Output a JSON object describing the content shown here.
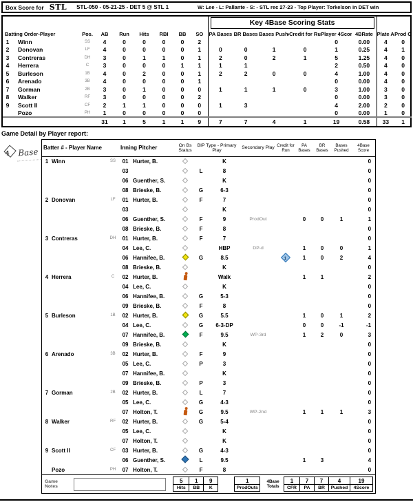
{
  "header": {
    "box_score_label": "Box Score for",
    "team_logo": "STL",
    "game_id": "STL-050 - 05-21-25 - DET 5 @ STL 1",
    "result_line": "W: Lee  -  L: Pallante  -  S:      -  STL rec 27-23 - Top Player: Torkelson in DET win"
  },
  "box_score": {
    "key_stats_title": "Key 4Base Scoring Stats",
    "columns": [
      "Batting Order-Player",
      "Pos.",
      "AB",
      "Run",
      "Hits",
      "RBI",
      "BB",
      "SO",
      "PA Bases",
      "BR Bases",
      "Bases Pushed",
      "Credit for Run",
      "Player 4Score",
      "4BRate",
      "Plate App",
      "Prod Outs"
    ],
    "rows": [
      {
        "order": "1",
        "name": "Winn",
        "pos": "SS",
        "ab": "4",
        "run": "0",
        "hits": "0",
        "rbi": "0",
        "bb": "0",
        "so": "2",
        "pa_bases": "",
        "br_bases": "",
        "pushed": "",
        "cfr": "",
        "four_score": "0",
        "rate": "0.00",
        "plate_app": "4",
        "prod_outs": "0"
      },
      {
        "order": "2",
        "name": "Donovan",
        "pos": "LF",
        "ab": "4",
        "run": "0",
        "hits": "0",
        "rbi": "0",
        "bb": "0",
        "so": "1",
        "pa_bases": "0",
        "br_bases": "0",
        "pushed": "1",
        "cfr": "0",
        "four_score": "1",
        "rate": "0.25",
        "plate_app": "4",
        "prod_outs": "1"
      },
      {
        "order": "3",
        "name": "Contreras",
        "pos": "DH",
        "ab": "3",
        "run": "0",
        "hits": "1",
        "rbi": "1",
        "bb": "0",
        "so": "1",
        "pa_bases": "2",
        "br_bases": "0",
        "pushed": "2",
        "cfr": "1",
        "four_score": "5",
        "rate": "1.25",
        "plate_app": "4",
        "prod_outs": "0"
      },
      {
        "order": "4",
        "name": "Herrera",
        "pos": "C",
        "ab": "3",
        "run": "0",
        "hits": "0",
        "rbi": "0",
        "bb": "1",
        "so": "1",
        "pa_bases": "1",
        "br_bases": "1",
        "pushed": "",
        "cfr": "",
        "four_score": "2",
        "rate": "0.50",
        "plate_app": "4",
        "prod_outs": "0"
      },
      {
        "order": "5",
        "name": "Burleson",
        "pos": "1B",
        "ab": "4",
        "run": "0",
        "hits": "2",
        "rbi": "0",
        "bb": "0",
        "so": "1",
        "pa_bases": "2",
        "br_bases": "2",
        "pushed": "0",
        "cfr": "0",
        "four_score": "4",
        "rate": "1.00",
        "plate_app": "4",
        "prod_outs": "0"
      },
      {
        "order": "6",
        "name": "Arenado",
        "pos": "3B",
        "ab": "4",
        "run": "0",
        "hits": "0",
        "rbi": "0",
        "bb": "0",
        "so": "1",
        "pa_bases": "",
        "br_bases": "",
        "pushed": "",
        "cfr": "",
        "four_score": "0",
        "rate": "0.00",
        "plate_app": "4",
        "prod_outs": "0"
      },
      {
        "order": "7",
        "name": "Gorman",
        "pos": "2B",
        "ab": "3",
        "run": "0",
        "hits": "1",
        "rbi": "0",
        "bb": "0",
        "so": "0",
        "pa_bases": "1",
        "br_bases": "1",
        "pushed": "1",
        "cfr": "0",
        "four_score": "3",
        "rate": "1.00",
        "plate_app": "3",
        "prod_outs": "0"
      },
      {
        "order": "8",
        "name": "Walker",
        "pos": "RF",
        "ab": "3",
        "run": "0",
        "hits": "0",
        "rbi": "0",
        "bb": "0",
        "so": "2",
        "pa_bases": "",
        "br_bases": "",
        "pushed": "",
        "cfr": "",
        "four_score": "0",
        "rate": "0.00",
        "plate_app": "3",
        "prod_outs": "0"
      },
      {
        "order": "9",
        "name": "Scott II",
        "pos": "CF",
        "ab": "2",
        "run": "1",
        "hits": "1",
        "rbi": "0",
        "bb": "0",
        "so": "0",
        "pa_bases": "1",
        "br_bases": "3",
        "pushed": "",
        "cfr": "",
        "four_score": "4",
        "rate": "2.00",
        "plate_app": "2",
        "prod_outs": "0"
      },
      {
        "order": "",
        "name": "Pozo",
        "pos": "PH",
        "ab": "1",
        "run": "0",
        "hits": "0",
        "rbi": "0",
        "bb": "0",
        "so": "0",
        "pa_bases": "",
        "br_bases": "",
        "pushed": "",
        "cfr": "",
        "four_score": "0",
        "rate": "0.00",
        "plate_app": "1",
        "prod_outs": "0"
      }
    ],
    "totals": [
      "",
      "",
      "",
      "31",
      "1",
      "5",
      "1",
      "1",
      "9",
      "7",
      "7",
      "4",
      "1",
      "19",
      "0.58",
      "33",
      "1"
    ]
  },
  "detail": {
    "section_title": "Game Detail by Player report:",
    "logo": {
      "number": "4",
      "text": "Base"
    },
    "columns": [
      "Batter # - Player Name",
      "Inning Pitcher",
      "On Bs Status",
      "BIP Type - Primary Play",
      "Secondary Play",
      "Credit for Run",
      "PA Bases",
      "BR Bases",
      "Bases Pushed",
      "4Base Score"
    ],
    "icons": {
      "default": "bases-empty-diamond-icon",
      "yellow": "runner-on-base-yellow-diamond-icon",
      "runner": "runner-advance-orange-icon",
      "green": "runner-scoring-green-diamond-icon",
      "blue": "runner-on-base-blue-diamond-icon",
      "cfr": "credit-for-run-diamond-icon"
    },
    "colors": {
      "yellow": "#f2e30e",
      "orange": "#c55a11",
      "green": "#00b050",
      "blue": "#2e75b6",
      "cfr_blue": "#9dc3e6"
    },
    "players": [
      {
        "order": "1",
        "name": "Winn",
        "pos": "SS",
        "pa": [
          {
            "inning": "01",
            "pitcher": "Hurter, B.",
            "status": "default",
            "bip": "",
            "play": "K",
            "secondary": "",
            "cfr": "",
            "pa": "",
            "br": "",
            "pushed": "",
            "score": "0"
          },
          {
            "inning": "03",
            "pitcher": "",
            "status": "default",
            "bip": "L",
            "play": "8",
            "secondary": "",
            "cfr": "",
            "pa": "",
            "br": "",
            "pushed": "",
            "score": "0"
          },
          {
            "inning": "06",
            "pitcher": "Guenther, S.",
            "status": "default",
            "bip": "",
            "play": "K",
            "secondary": "",
            "cfr": "",
            "pa": "",
            "br": "",
            "pushed": "",
            "score": "0"
          },
          {
            "inning": "08",
            "pitcher": "Brieske, B.",
            "status": "default",
            "bip": "G",
            "play": "6-3",
            "secondary": "",
            "cfr": "",
            "pa": "",
            "br": "",
            "pushed": "",
            "score": "0"
          }
        ]
      },
      {
        "order": "2",
        "name": "Donovan",
        "pos": "LF",
        "pa": [
          {
            "inning": "01",
            "pitcher": "Hurter, B.",
            "status": "default",
            "bip": "F",
            "play": "7",
            "secondary": "",
            "cfr": "",
            "pa": "",
            "br": "",
            "pushed": "",
            "score": "0"
          },
          {
            "inning": "03",
            "pitcher": "",
            "status": "default",
            "bip": "",
            "play": "K",
            "secondary": "",
            "cfr": "",
            "pa": "",
            "br": "",
            "pushed": "",
            "score": "0"
          },
          {
            "inning": "06",
            "pitcher": "Guenther, S.",
            "status": "default",
            "bip": "F",
            "play": "9",
            "secondary": "ProdOut",
            "cfr": "",
            "pa": "0",
            "br": "0",
            "pushed": "1",
            "score": "1"
          },
          {
            "inning": "08",
            "pitcher": "Brieske, B.",
            "status": "default",
            "bip": "F",
            "play": "8",
            "secondary": "",
            "cfr": "",
            "pa": "",
            "br": "",
            "pushed": "",
            "score": "0"
          }
        ]
      },
      {
        "order": "3",
        "name": "Contreras",
        "pos": "DH",
        "pa": [
          {
            "inning": "01",
            "pitcher": "Hurter, B.",
            "status": "default",
            "bip": "F",
            "play": "7",
            "secondary": "",
            "cfr": "",
            "pa": "",
            "br": "",
            "pushed": "",
            "score": "0"
          },
          {
            "inning": "04",
            "pitcher": "Lee, C.",
            "status": "default",
            "bip": "",
            "play": "HBP",
            "secondary": "DP-d",
            "cfr": "",
            "pa": "1",
            "br": "0",
            "pushed": "0",
            "score": "1"
          },
          {
            "inning": "06",
            "pitcher": "Hannifee, B.",
            "status": "yellow",
            "bip": "G",
            "play": "8.5",
            "secondary": "",
            "cfr": "1",
            "cfr_icon": true,
            "pa": "1",
            "br": "0",
            "pushed": "2",
            "score": "4"
          },
          {
            "inning": "08",
            "pitcher": "Brieske, B.",
            "status": "default",
            "bip": "",
            "play": "K",
            "secondary": "",
            "cfr": "",
            "pa": "",
            "br": "",
            "pushed": "",
            "score": "0"
          }
        ]
      },
      {
        "order": "4",
        "name": "Herrera",
        "pos": "C",
        "pa": [
          {
            "inning": "02",
            "pitcher": "Hurter, B.",
            "status": "runner",
            "bip": "",
            "play": "Walk",
            "secondary": "",
            "cfr": "",
            "pa": "1",
            "br": "1",
            "pushed": "",
            "score": "2"
          },
          {
            "inning": "04",
            "pitcher": "Lee, C.",
            "status": "default",
            "bip": "",
            "play": "K",
            "secondary": "",
            "cfr": "",
            "pa": "",
            "br": "",
            "pushed": "",
            "score": "0"
          },
          {
            "inning": "06",
            "pitcher": "Hannifee, B.",
            "status": "default",
            "bip": "G",
            "play": "5-3",
            "secondary": "",
            "cfr": "",
            "pa": "",
            "br": "",
            "pushed": "",
            "score": "0"
          },
          {
            "inning": "09",
            "pitcher": "Brieske, B.",
            "status": "default",
            "bip": "F",
            "play": "8",
            "secondary": "",
            "cfr": "",
            "pa": "",
            "br": "",
            "pushed": "",
            "score": "0"
          }
        ]
      },
      {
        "order": "5",
        "name": "Burleson",
        "pos": "1B",
        "pa": [
          {
            "inning": "02",
            "pitcher": "Hurter, B.",
            "status": "yellow",
            "bip": "G",
            "play": "5.5",
            "secondary": "",
            "cfr": "",
            "pa": "1",
            "br": "0",
            "pushed": "1",
            "score": "2"
          },
          {
            "inning": "04",
            "pitcher": "Lee, C.",
            "status": "default",
            "bip": "G",
            "play": "6-3-DP",
            "secondary": "",
            "cfr": "",
            "pa": "0",
            "br": "0",
            "pushed": "-1",
            "score": "-1"
          },
          {
            "inning": "07",
            "pitcher": "Hannifee, B.",
            "status": "green",
            "bip": "F",
            "play": "9.5",
            "secondary": "WP-3rd",
            "cfr": "",
            "pa": "1",
            "br": "2",
            "pushed": "0",
            "score": "3"
          },
          {
            "inning": "09",
            "pitcher": "Brieske, B.",
            "status": "default",
            "bip": "",
            "play": "K",
            "secondary": "",
            "cfr": "",
            "pa": "",
            "br": "",
            "pushed": "",
            "score": "0"
          }
        ]
      },
      {
        "order": "6",
        "name": "Arenado",
        "pos": "3B",
        "pa": [
          {
            "inning": "02",
            "pitcher": "Hurter, B.",
            "status": "default",
            "bip": "F",
            "play": "9",
            "secondary": "",
            "cfr": "",
            "pa": "",
            "br": "",
            "pushed": "",
            "score": "0"
          },
          {
            "inning": "05",
            "pitcher": "Lee, C.",
            "status": "default",
            "bip": "P",
            "play": "3",
            "secondary": "",
            "cfr": "",
            "pa": "",
            "br": "",
            "pushed": "",
            "score": "0"
          },
          {
            "inning": "07",
            "pitcher": "Hannifee, B.",
            "status": "default",
            "bip": "",
            "play": "K",
            "secondary": "",
            "cfr": "",
            "pa": "",
            "br": "",
            "pushed": "",
            "score": "0"
          },
          {
            "inning": "09",
            "pitcher": "Brieske, B.",
            "status": "default",
            "bip": "P",
            "play": "3",
            "secondary": "",
            "cfr": "",
            "pa": "",
            "br": "",
            "pushed": "",
            "score": "0"
          }
        ]
      },
      {
        "order": "7",
        "name": "Gorman",
        "pos": "2B",
        "pa": [
          {
            "inning": "02",
            "pitcher": "Hurter, B.",
            "status": "default",
            "bip": "L",
            "play": "7",
            "secondary": "",
            "cfr": "",
            "pa": "",
            "br": "",
            "pushed": "",
            "score": "0"
          },
          {
            "inning": "05",
            "pitcher": "Lee, C.",
            "status": "default",
            "bip": "G",
            "play": "4-3",
            "secondary": "",
            "cfr": "",
            "pa": "",
            "br": "",
            "pushed": "",
            "score": "0"
          },
          {
            "inning": "07",
            "pitcher": "Holton, T.",
            "status": "runner",
            "bip": "G",
            "play": "9.5",
            "secondary": "WP-2nd",
            "cfr": "",
            "pa": "1",
            "br": "1",
            "pushed": "1",
            "score": "3"
          }
        ]
      },
      {
        "order": "8",
        "name": "Walker",
        "pos": "RF",
        "pa": [
          {
            "inning": "02",
            "pitcher": "Hurter, B.",
            "status": "default",
            "bip": "G",
            "play": "5-4",
            "secondary": "",
            "cfr": "",
            "pa": "",
            "br": "",
            "pushed": "",
            "score": "0"
          },
          {
            "inning": "05",
            "pitcher": "Lee, C.",
            "status": "default",
            "bip": "",
            "play": "K",
            "secondary": "",
            "cfr": "",
            "pa": "",
            "br": "",
            "pushed": "",
            "score": "0"
          },
          {
            "inning": "07",
            "pitcher": "Holton, T.",
            "status": "default",
            "bip": "",
            "play": "K",
            "secondary": "",
            "cfr": "",
            "pa": "",
            "br": "",
            "pushed": "",
            "score": "0"
          }
        ]
      },
      {
        "order": "9",
        "name": "Scott II",
        "pos": "CF",
        "pa": [
          {
            "inning": "03",
            "pitcher": "Hurter, B.",
            "status": "default",
            "bip": "G",
            "play": "4-3",
            "secondary": "",
            "cfr": "",
            "pa": "",
            "br": "",
            "pushed": "",
            "score": "0"
          },
          {
            "inning": "06",
            "pitcher": "Guenther, S.",
            "status": "blue",
            "bip": "L",
            "play": "9.5",
            "secondary": "",
            "cfr": "",
            "pa": "1",
            "br": "3",
            "pushed": "",
            "score": "4"
          }
        ]
      },
      {
        "order": "",
        "name": "Pozo",
        "pos": "PH",
        "pa": [
          {
            "inning": "07",
            "pitcher": "Holton, T.",
            "status": "default",
            "bip": "F",
            "play": "8",
            "secondary": "",
            "cfr": "",
            "pa": "",
            "br": "",
            "pushed": "",
            "score": "0"
          }
        ]
      }
    ]
  },
  "footer": {
    "notes_label": "Game Notes",
    "notes_value": "",
    "stat_boxes": [
      {
        "label": "Hits",
        "value": "5"
      },
      {
        "label": "BB",
        "value": "1"
      },
      {
        "label": "K",
        "value": "9"
      }
    ],
    "prod_boxes": [
      {
        "label": "ProdOuts",
        "value": "1"
      }
    ],
    "totals_label": "4Base Totals",
    "total_boxes": [
      {
        "label": "CFR",
        "value": "1"
      },
      {
        "label": "PA",
        "value": "7"
      },
      {
        "label": "BR",
        "value": "7"
      },
      {
        "label": "Pushed",
        "value": "4"
      },
      {
        "label": "4Score",
        "value": "19"
      }
    ]
  }
}
